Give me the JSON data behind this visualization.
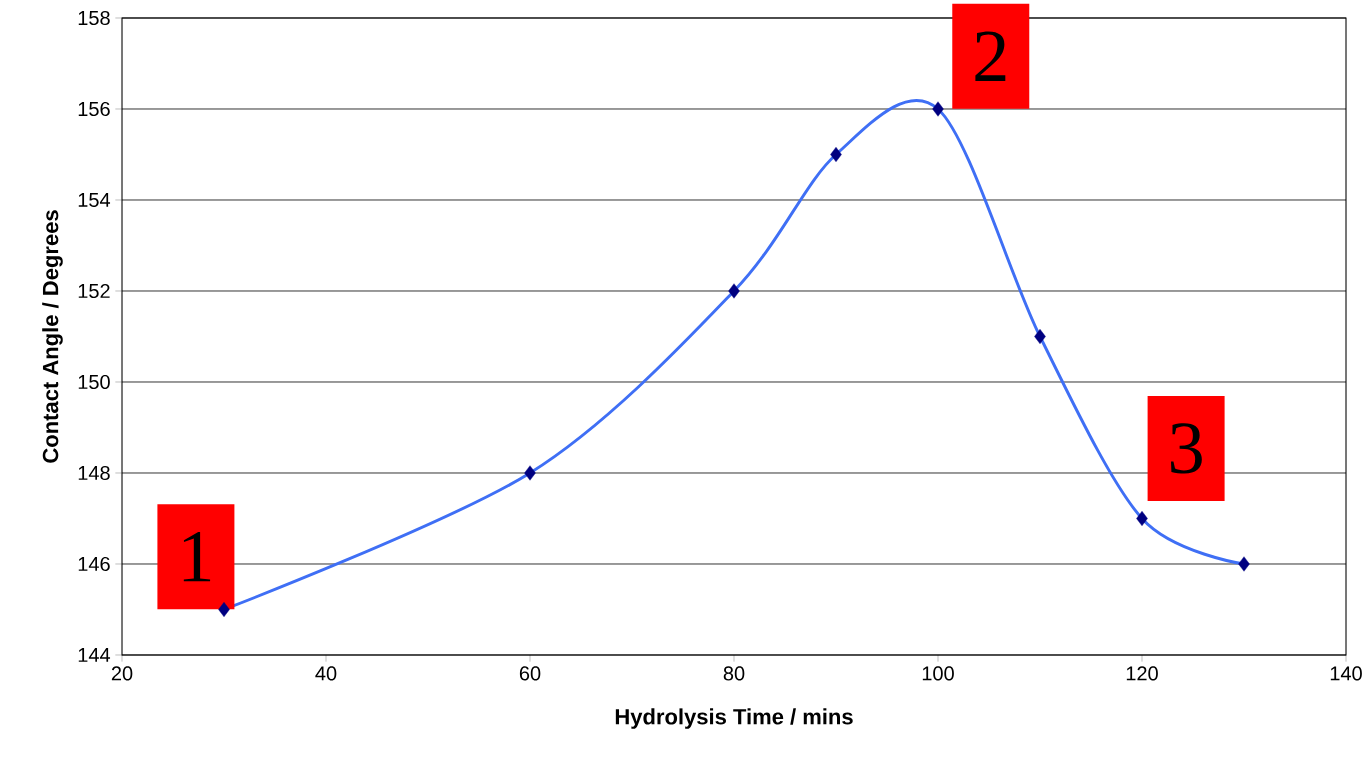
{
  "chart_data": {
    "type": "line",
    "xlabel": "Hydrolysis Time / mins",
    "ylabel": "Contact Angle / Degrees",
    "x": [
      30,
      60,
      80,
      90,
      100,
      110,
      120,
      130
    ],
    "series": [
      {
        "color": "#3f6ff5",
        "values": [
          145,
          148,
          152,
          155,
          156,
          151,
          147,
          146
        ]
      }
    ],
    "xlim": [
      20,
      140
    ],
    "xticks": [
      20,
      40,
      60,
      80,
      100,
      120,
      140
    ],
    "ylim": [
      144,
      158
    ],
    "yticks": [
      144,
      146,
      148,
      150,
      152,
      154,
      156,
      158
    ],
    "grid": "y",
    "marker": "diamond",
    "line_style": "solid",
    "annotations": [
      {
        "text": "1",
        "x": 30,
        "y": 145
      },
      {
        "text": "2",
        "x": 100,
        "y": 156
      },
      {
        "text": "3",
        "x": 120,
        "y": 147
      }
    ]
  }
}
